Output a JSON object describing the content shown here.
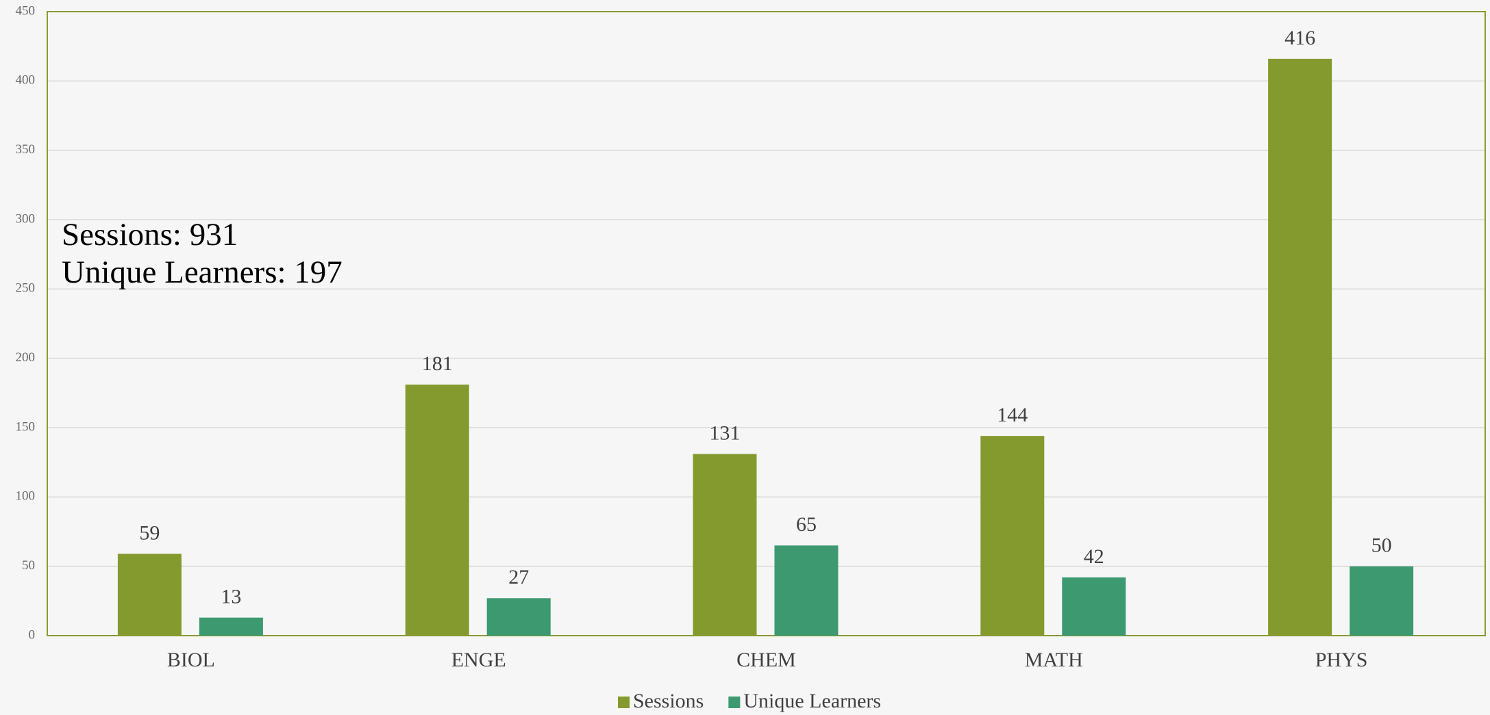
{
  "chart_data": {
    "type": "bar",
    "annotations": [
      "Sessions: 931",
      "Unique Learners: 197"
    ],
    "categories": [
      "BIOL",
      "ENGE",
      "CHEM",
      "MATH",
      "PHYS"
    ],
    "series": [
      {
        "name": "Sessions",
        "color": "#849a2e",
        "values": [
          59,
          181,
          131,
          144,
          416
        ]
      },
      {
        "name": "Unique Learners",
        "color": "#3d9970",
        "values": [
          13,
          27,
          65,
          42,
          50
        ]
      }
    ],
    "ylim": [
      0,
      450
    ],
    "yticks": [
      0,
      50,
      100,
      150,
      200,
      250,
      300,
      350,
      400,
      450
    ],
    "grid": true,
    "legend": "bottom"
  }
}
